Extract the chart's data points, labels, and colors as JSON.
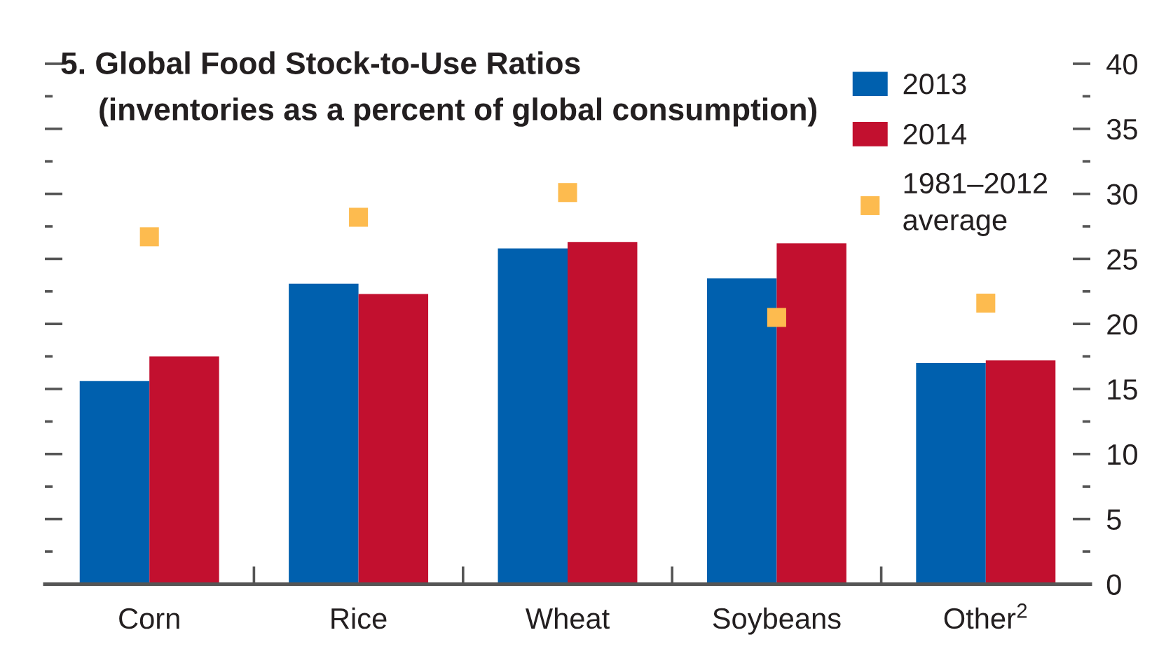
{
  "chart_data": {
    "type": "bar",
    "title": "5. Global Food Stock-to-Use Ratios",
    "subtitle": "(inventories as a percent of global consumption)",
    "categories": [
      "Corn",
      "Rice",
      "Wheat",
      "Soybeans",
      "Other$^{2}$"
    ],
    "series": [
      {
        "name": "2013",
        "color": "#0060ae",
        "values": [
          15.6,
          23.1,
          25.8,
          23.5,
          17.0
        ]
      },
      {
        "name": "2014",
        "color": "#c2102f",
        "values": [
          17.5,
          22.3,
          26.3,
          26.2,
          17.2
        ]
      },
      {
        "name": "1981–2012\naverage",
        "type": "scatter",
        "color": "#fdbb4f",
        "x": [
          "Corn",
          "Rice",
          "Wheat",
          "Soybeans",
          "Other$^{2}$"
        ],
        "values": [
          26.7,
          28.2,
          30.1,
          20.5,
          21.6
        ]
      }
    ],
    "ylim": [
      0,
      40
    ],
    "yticks": [
      0,
      {
        "value": 2.5,
        "label": null
      },
      5,
      {
        "value": 7.5,
        "label": null
      },
      10,
      {
        "value": 12.5,
        "label": null
      },
      15,
      {
        "value": 17.5,
        "label": null
      },
      20,
      {
        "value": 22.5,
        "label": null
      },
      25,
      {
        "value": 27.5,
        "label": null
      },
      30,
      {
        "value": 32.5,
        "label": null
      },
      35,
      {
        "value": 37.5,
        "label": null
      },
      40
    ],
    "legend": "top right",
    "marker": "square"
  }
}
